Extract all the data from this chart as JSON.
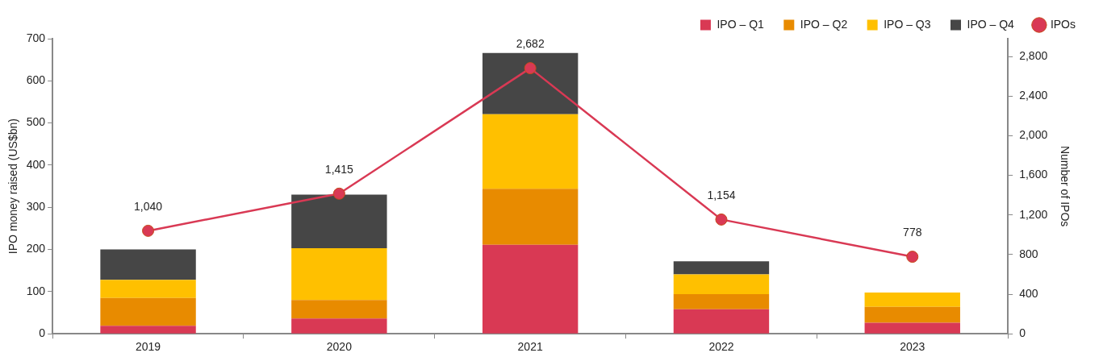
{
  "chart_data": {
    "type": "bar",
    "stacked": true,
    "ylabel": "IPO money raised (US$bn)",
    "y2label": "Number of IPOs",
    "categories": [
      "2019",
      "2020",
      "2021",
      "2022",
      "2023"
    ],
    "series": [
      {
        "name": "IPO – Q1",
        "color": "#d93954",
        "values": [
          19,
          36,
          211,
          58,
          26
        ]
      },
      {
        "name": "IPO – Q2",
        "color": "#e88b00",
        "values": [
          66,
          44,
          133,
          36,
          38
        ]
      },
      {
        "name": "IPO – Q3",
        "color": "#ffc000",
        "values": [
          43,
          123,
          177,
          47,
          34
        ]
      },
      {
        "name": "IPO – Q4",
        "color": "#464646",
        "values": [
          72,
          127,
          145,
          31,
          0
        ]
      },
      {
        "name": "IPOs",
        "type": "line",
        "axis": "y2",
        "color": "#d93954",
        "marker": "circle",
        "values": [
          1040,
          1415,
          2682,
          1154,
          778
        ],
        "value_labels": [
          "1,040",
          "1,415",
          "2,682",
          "1,154",
          "778"
        ]
      }
    ],
    "ylim": [
      0,
      700
    ],
    "yticks": [
      0,
      100,
      200,
      300,
      400,
      500,
      600,
      700
    ],
    "y2lim": [
      0,
      2980
    ],
    "y2ticks": [
      {
        "value": 0,
        "label": "0"
      },
      {
        "value": 400,
        "label": "400"
      },
      {
        "value": 800,
        "label": "800"
      },
      {
        "value": 1200,
        "label": "1,200"
      },
      {
        "value": 1600,
        "label": "1,600"
      },
      {
        "value": 2000,
        "label": "2,000"
      },
      {
        "value": 2400,
        "label": "2,400"
      },
      {
        "value": 2800,
        "label": "2,800"
      }
    ],
    "grid": false,
    "legend": "top right"
  }
}
